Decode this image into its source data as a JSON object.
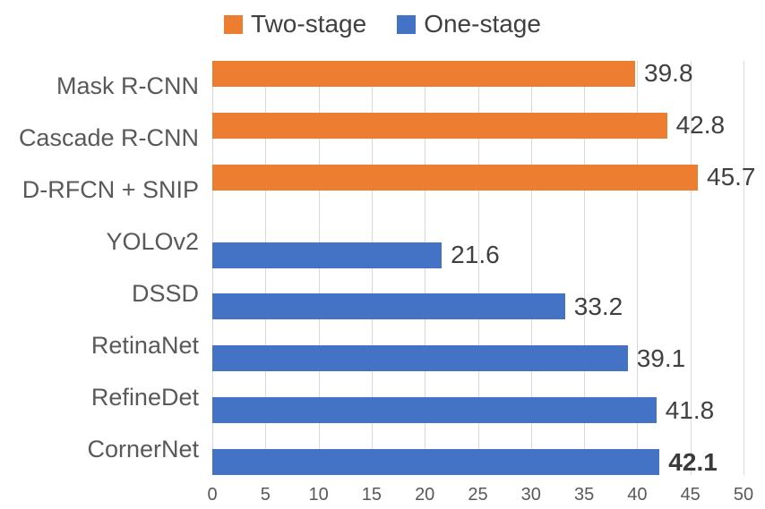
{
  "legend": {
    "items": [
      {
        "label": "Two-stage",
        "color": "#ED7D31"
      },
      {
        "label": "One-stage",
        "color": "#4472C4"
      }
    ]
  },
  "colors": {
    "two_stage": "#ED7D31",
    "one_stage": "#4472C4",
    "gridline": "#D9D9D9",
    "tick_text": "#595959",
    "category_text": "#595959",
    "value_text": "#404040",
    "background": "#FFFFFF"
  },
  "chart_data": {
    "type": "bar",
    "orientation": "horizontal",
    "title": "",
    "xlabel": "",
    "ylabel": "",
    "xlim": [
      0,
      50
    ],
    "xticks": [
      0,
      5,
      10,
      15,
      20,
      25,
      30,
      35,
      40,
      45,
      50
    ],
    "grid": true,
    "legend_position": "top-center",
    "categories": [
      "Mask R-CNN",
      "Cascade R-CNN",
      "D-RFCN + SNIP",
      "YOLOv2",
      "DSSD",
      "RetinaNet",
      "RefineDet",
      "CornerNet"
    ],
    "series": [
      {
        "name": "Two-stage",
        "color": "#ED7D31",
        "values": [
          39.8,
          42.8,
          45.7,
          null,
          null,
          null,
          null,
          null
        ]
      },
      {
        "name": "One-stage",
        "color": "#4472C4",
        "values": [
          null,
          null,
          null,
          21.6,
          33.2,
          39.1,
          41.8,
          42.1
        ]
      }
    ],
    "bars": [
      {
        "category": "Mask R-CNN",
        "group": "Two-stage",
        "value": 39.8,
        "label": "39.8",
        "emphasis": false
      },
      {
        "category": "Cascade R-CNN",
        "group": "Two-stage",
        "value": 42.8,
        "label": "42.8",
        "emphasis": false
      },
      {
        "category": "D-RFCN + SNIP",
        "group": "Two-stage",
        "value": 45.7,
        "label": "45.7",
        "emphasis": false
      },
      {
        "category": "YOLOv2",
        "group": "One-stage",
        "value": 21.6,
        "label": "21.6",
        "emphasis": false
      },
      {
        "category": "DSSD",
        "group": "One-stage",
        "value": 33.2,
        "label": "33.2",
        "emphasis": false
      },
      {
        "category": "RetinaNet",
        "group": "One-stage",
        "value": 39.1,
        "label": "39.1",
        "emphasis": false
      },
      {
        "category": "RefineDet",
        "group": "One-stage",
        "value": 41.8,
        "label": "41.8",
        "emphasis": false
      },
      {
        "category": "CornerNet",
        "group": "One-stage",
        "value": 42.1,
        "label": "42.1",
        "emphasis": true
      }
    ]
  }
}
